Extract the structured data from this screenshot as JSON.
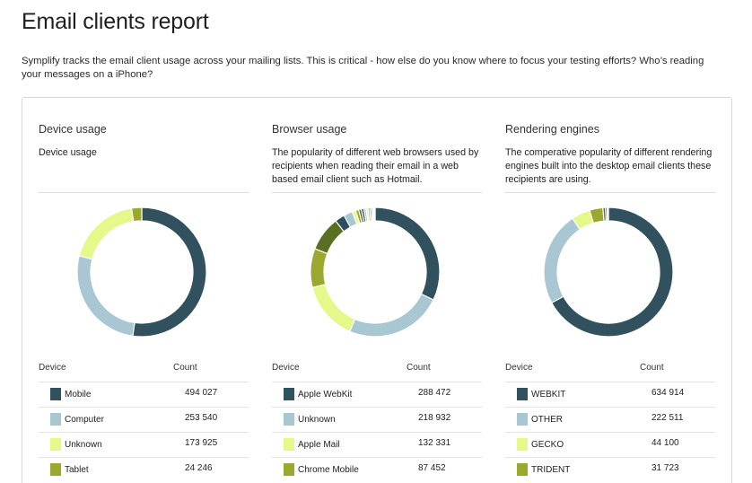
{
  "page": {
    "title": "Email clients report",
    "intro": "Symplify tracks the email client usage across your mailing lists. This is critical - how else do you know where to focus your testing efforts? Who’s reading your messages on a iPhone?"
  },
  "sections": [
    {
      "title": "Device usage",
      "description": "Device usage",
      "table_headers": {
        "label": "Device",
        "count": "Count"
      },
      "rows": [
        {
          "label": "Mobile",
          "count": "494 027",
          "color": "#31515f"
        },
        {
          "label": "Computer",
          "count": "253 540",
          "color": "#a9c6d3"
        },
        {
          "label": "Unknown",
          "count": "173 925",
          "color": "#e5f98a"
        },
        {
          "label": "Tablet",
          "count": "24 246",
          "color": "#9aa82e"
        }
      ]
    },
    {
      "title": "Browser usage",
      "description": "The popularity of different web browsers used by recipients when reading their email in a web based email client such as Hotmail.",
      "table_headers": {
        "label": "Device",
        "count": "Count"
      },
      "rows": [
        {
          "label": "Apple WebKit",
          "count": "288 472",
          "color": "#31515f"
        },
        {
          "label": "Unknown",
          "count": "218 932",
          "color": "#a9c6d3"
        },
        {
          "label": "Apple Mail",
          "count": "132 331",
          "color": "#e5f98a"
        },
        {
          "label": "Chrome Mobile",
          "count": "87 452",
          "color": "#9aa82e"
        }
      ]
    },
    {
      "title": "Rendering engines",
      "description": "The comperative popularity of different rendering engines built into the desktop email clients these recipients are using.",
      "table_headers": {
        "label": "Device",
        "count": "Count"
      },
      "rows": [
        {
          "label": "WEBKIT",
          "count": "634 914",
          "color": "#31515f"
        },
        {
          "label": "OTHER",
          "count": "222 511",
          "color": "#a9c6d3"
        },
        {
          "label": "GECKO",
          "count": "44 100",
          "color": "#e5f98a"
        },
        {
          "label": "TRIDENT",
          "count": "31 723",
          "color": "#9aa82e"
        }
      ]
    }
  ],
  "chart_data": [
    {
      "type": "pie",
      "donut": true,
      "title": "Device usage",
      "slices": [
        {
          "label": "Mobile",
          "value": 494027,
          "color": "#31515f"
        },
        {
          "label": "Computer",
          "value": 253540,
          "color": "#a9c6d3"
        },
        {
          "label": "Unknown",
          "value": 173925,
          "color": "#e5f98a"
        },
        {
          "label": "Tablet",
          "value": 24246,
          "color": "#9aa82e"
        }
      ]
    },
    {
      "type": "pie",
      "donut": true,
      "title": "Browser usage",
      "slices": [
        {
          "label": "Apple WebKit",
          "value": 288472,
          "color": "#31515f"
        },
        {
          "label": "Unknown",
          "value": 218932,
          "color": "#a9c6d3"
        },
        {
          "label": "Apple Mail",
          "value": 132331,
          "color": "#e5f98a"
        },
        {
          "label": "Chrome Mobile",
          "value": 87452,
          "color": "#9aa82e"
        },
        {
          "value": 78000,
          "color": "#5a6f23"
        },
        {
          "value": 22000,
          "color": "#2f4f5c"
        },
        {
          "value": 20000,
          "color": "#a9c6d3"
        },
        {
          "value": 8000,
          "color": "#e5f98a"
        },
        {
          "value": 7000,
          "color": "#9aa82e"
        },
        {
          "value": 6000,
          "color": "#5a6f23"
        },
        {
          "value": 5500,
          "color": "#31515f"
        },
        {
          "value": 5000,
          "color": "#a9c6d3"
        },
        {
          "value": 4500,
          "color": "#e5f98a"
        },
        {
          "value": 4000,
          "color": "#9aa82e"
        },
        {
          "value": 3500,
          "color": "#5a6f23"
        },
        {
          "value": 3000,
          "color": "#31515f"
        },
        {
          "value": 3000,
          "color": "#a9c6d3"
        },
        {
          "value": 2500,
          "color": "#9aa82e"
        }
      ]
    },
    {
      "type": "pie",
      "donut": true,
      "title": "Rendering engines",
      "slices": [
        {
          "label": "WEBKIT",
          "value": 634914,
          "color": "#31515f"
        },
        {
          "label": "OTHER",
          "value": 222511,
          "color": "#a9c6d3"
        },
        {
          "label": "GECKO",
          "value": 44100,
          "color": "#e5f98a"
        },
        {
          "label": "TRIDENT",
          "value": 31723,
          "color": "#9aa82e"
        },
        {
          "value": 6000,
          "color": "#5a6f23"
        },
        {
          "value": 4000,
          "color": "#2f4f5c"
        },
        {
          "value": 3000,
          "color": "#a9c6d3"
        }
      ]
    }
  ]
}
